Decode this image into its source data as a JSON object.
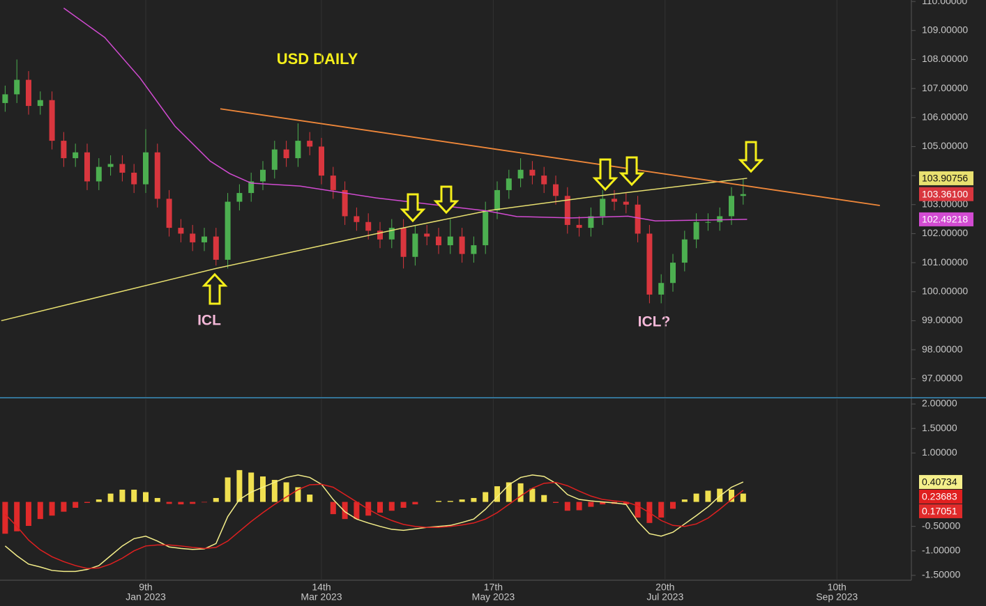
{
  "chart_data": [
    {
      "type": "candlestick",
      "title": "USD DAILY",
      "annotations": [
        "ICL",
        "ICL?"
      ],
      "xlim": [
        -37.32,
        196.07
      ],
      "ylim": [
        96.37,
        110.05
      ],
      "yticks": [
        {
          "value": 110,
          "label": "110.00000"
        },
        {
          "value": 109,
          "label": "109.00000"
        },
        {
          "value": 108,
          "label": "108.00000"
        },
        {
          "value": 107,
          "label": "107.00000"
        },
        {
          "value": 106,
          "label": "106.00000"
        },
        {
          "value": 105,
          "label": "105.00000"
        },
        {
          "value": 104,
          "label": "104.00000"
        },
        {
          "value": 103,
          "label": "103.00000"
        },
        {
          "value": 102,
          "label": "102.00000"
        },
        {
          "value": 101,
          "label": "101.00000"
        },
        {
          "value": 100,
          "label": "100.00000"
        },
        {
          "value": 99,
          "label": "99.00000"
        },
        {
          "value": 98,
          "label": "98.00000"
        },
        {
          "value": 97,
          "label": "97.00000"
        }
      ],
      "up_color": "#4caf50",
      "down_color": "#d9363e",
      "close_label": "103.36100",
      "x": [
        -36,
        -33,
        -30,
        -27,
        -24,
        -21,
        -18,
        -15,
        -12,
        -9,
        -6,
        -3,
        0,
        3,
        6,
        9,
        12,
        15,
        18,
        21,
        24,
        27,
        30,
        33,
        36,
        39,
        42,
        45,
        48,
        51,
        54,
        57,
        60,
        63,
        66,
        69,
        72,
        75,
        78,
        81,
        84,
        87,
        90,
        93,
        96,
        99,
        102,
        105,
        108,
        111,
        114,
        117,
        120,
        123,
        126,
        129,
        132,
        135,
        138,
        141,
        144,
        147,
        150,
        153
      ],
      "open": [
        106.5,
        106.8,
        107.3,
        106.4,
        106.6,
        105.2,
        104.6,
        104.8,
        103.8,
        104.3,
        104.4,
        104.1,
        103.7,
        104.8,
        103.2,
        102.2,
        102.0,
        101.7,
        101.9,
        101.1,
        103.1,
        103.4,
        103.8,
        104.2,
        104.9,
        104.6,
        105.2,
        105.0,
        104.0,
        103.5,
        102.6,
        102.4,
        102.1,
        101.8,
        102.2,
        101.2,
        102.0,
        101.9,
        101.6,
        101.9,
        101.3,
        101.6,
        102.8,
        103.5,
        103.9,
        104.2,
        104.0,
        103.7,
        103.3,
        102.3,
        102.2,
        102.6,
        103.2,
        103.1,
        103.0,
        102.0,
        99.9,
        100.3,
        101.0,
        101.8,
        102.4,
        102.4,
        102.6,
        103.3
      ],
      "high": [
        107.1,
        108.0,
        107.6,
        106.9,
        106.9,
        105.5,
        105.1,
        105.1,
        104.6,
        104.7,
        104.7,
        104.4,
        105.6,
        105.1,
        103.5,
        102.5,
        102.3,
        102.2,
        102.2,
        103.4,
        103.7,
        104.1,
        104.5,
        105.2,
        105.2,
        105.8,
        105.5,
        105.3,
        104.3,
        103.8,
        102.9,
        102.7,
        102.4,
        102.5,
        102.5,
        102.3,
        102.3,
        102.2,
        102.5,
        102.2,
        101.9,
        103.1,
        103.8,
        104.2,
        104.6,
        104.5,
        104.3,
        104.0,
        103.6,
        102.6,
        102.9,
        103.5,
        103.5,
        103.4,
        103.3,
        102.3,
        100.6,
        101.3,
        102.1,
        102.7,
        102.7,
        102.9,
        103.6,
        103.9
      ],
      "low": [
        106.2,
        106.5,
        106.1,
        106.1,
        104.9,
        104.3,
        104.3,
        103.5,
        103.5,
        104.0,
        103.8,
        103.4,
        103.4,
        102.9,
        101.9,
        101.7,
        101.4,
        101.4,
        100.9,
        100.8,
        102.8,
        103.1,
        103.5,
        103.9,
        104.3,
        104.3,
        104.7,
        103.7,
        103.2,
        102.3,
        102.1,
        101.8,
        101.5,
        101.5,
        100.8,
        100.9,
        101.6,
        101.3,
        101.3,
        101.0,
        101.0,
        101.3,
        102.5,
        103.2,
        103.6,
        103.7,
        103.4,
        103.0,
        102.0,
        101.9,
        101.9,
        102.3,
        102.8,
        102.7,
        101.7,
        99.6,
        99.6,
        100.0,
        100.7,
        101.5,
        102.1,
        102.1,
        102.3,
        103.0
      ],
      "close": [
        106.8,
        107.3,
        106.4,
        106.6,
        105.2,
        104.6,
        104.8,
        103.8,
        104.3,
        104.4,
        104.1,
        103.7,
        104.8,
        103.2,
        102.2,
        102.0,
        101.7,
        101.9,
        101.1,
        103.1,
        103.4,
        103.8,
        104.2,
        104.9,
        104.6,
        105.2,
        105.0,
        104.0,
        103.5,
        102.6,
        102.4,
        102.1,
        101.8,
        102.2,
        101.2,
        102.0,
        101.9,
        101.6,
        101.9,
        101.3,
        101.6,
        102.8,
        103.5,
        103.9,
        104.2,
        104.0,
        103.7,
        103.3,
        102.3,
        102.2,
        102.6,
        103.2,
        103.1,
        103.0,
        102.0,
        99.9,
        100.3,
        101.0,
        101.8,
        102.4,
        102.4,
        102.6,
        103.3,
        103.361
      ],
      "series": [
        {
          "color": "#e8e070",
          "last_label": "103.90756",
          "x": [
            -37,
            18,
            66,
            88,
            116,
            154
          ],
          "values": [
            99.0,
            100.8,
            102.2,
            102.8,
            103.3,
            103.90756
          ]
        },
        {
          "color": "#d24bd2",
          "last_label": "102.49218",
          "x": [
            -21,
            -10.5,
            -1.5,
            7.5,
            16.5,
            21.5,
            27,
            39.5,
            59,
            87.5,
            95,
            109,
            123.5,
            130.5,
            154
          ],
          "values": [
            109.77,
            108.76,
            107.37,
            105.7,
            104.5,
            104.07,
            103.74,
            103.64,
            103.23,
            102.78,
            102.59,
            102.54,
            102.6,
            102.44,
            102.49218
          ]
        }
      ],
      "trendline": {
        "color": "#f0883a",
        "x": [
          19.1,
          188
        ],
        "values": [
          106.3,
          102.97
        ]
      }
    },
    {
      "type": "macd",
      "xlim": [
        -37.32,
        196.07
      ],
      "ylim": [
        -1.6,
        2.1
      ],
      "yticks": [
        {
          "value": 2,
          "label": "2.00000"
        },
        {
          "value": 1.5,
          "label": "1.50000"
        },
        {
          "value": 1,
          "label": "1.00000"
        },
        {
          "value": -0.5,
          "label": "-0.50000"
        },
        {
          "value": -1,
          "label": "-1.00000"
        },
        {
          "value": -1.5,
          "label": "-1.50000"
        }
      ],
      "xticks": [
        {
          "value": 0,
          "label": "9th",
          "sublabel": "Jan 2023"
        },
        {
          "value": 45,
          "label": "14th",
          "sublabel": "Mar 2023"
        },
        {
          "value": 89,
          "label": "17th",
          "sublabel": "May 2023"
        },
        {
          "value": 133,
          "label": "20th",
          "sublabel": "Jul 2023"
        },
        {
          "value": 177,
          "label": "10th",
          "sublabel": "Sep 2023"
        }
      ],
      "grid": true,
      "x": [
        -36,
        -33,
        -30,
        -27,
        -24,
        -21,
        -18,
        -15,
        -12,
        -9,
        -6,
        -3,
        0,
        3,
        6,
        9,
        12,
        15,
        18,
        21,
        24,
        27,
        30,
        33,
        36,
        39,
        42,
        45,
        48,
        51,
        54,
        57,
        60,
        63,
        66,
        69,
        72,
        75,
        78,
        81,
        84,
        87,
        90,
        93,
        96,
        99,
        102,
        105,
        108,
        111,
        114,
        117,
        120,
        123,
        126,
        129,
        132,
        135,
        138,
        141,
        144,
        147,
        150,
        153
      ],
      "series": [
        {
          "color": "#f5ef8a",
          "last_label": "0.40734",
          "values": [
            -0.9,
            -1.1,
            -1.27,
            -1.33,
            -1.4,
            -1.42,
            -1.42,
            -1.38,
            -1.3,
            -1.1,
            -0.9,
            -0.75,
            -0.7,
            -0.8,
            -0.92,
            -0.95,
            -0.97,
            -0.96,
            -0.85,
            -0.3,
            0.05,
            0.2,
            0.3,
            0.4,
            0.5,
            0.55,
            0.5,
            0.36,
            0.05,
            -0.2,
            -0.35,
            -0.43,
            -0.5,
            -0.56,
            -0.58,
            -0.55,
            -0.52,
            -0.5,
            -0.48,
            -0.42,
            -0.35,
            -0.15,
            0.1,
            0.35,
            0.5,
            0.55,
            0.52,
            0.38,
            0.15,
            0.05,
            0.02,
            0.0,
            -0.02,
            -0.05,
            -0.4,
            -0.65,
            -0.7,
            -0.62,
            -0.45,
            -0.28,
            -0.1,
            0.12,
            0.3,
            0.40734
          ]
        },
        {
          "color": "#e02020",
          "last_label": "0.23683",
          "values": [
            -0.25,
            -0.5,
            -0.78,
            -0.98,
            -1.12,
            -1.22,
            -1.3,
            -1.36,
            -1.35,
            -1.27,
            -1.15,
            -1.0,
            -0.9,
            -0.88,
            -0.88,
            -0.9,
            -0.93,
            -0.95,
            -0.93,
            -0.8,
            -0.6,
            -0.4,
            -0.22,
            -0.05,
            0.1,
            0.25,
            0.35,
            0.36,
            0.3,
            0.15,
            0.0,
            -0.15,
            -0.28,
            -0.38,
            -0.46,
            -0.5,
            -0.52,
            -0.52,
            -0.5,
            -0.47,
            -0.43,
            -0.35,
            -0.22,
            -0.05,
            0.12,
            0.28,
            0.38,
            0.4,
            0.33,
            0.22,
            0.12,
            0.05,
            0.02,
            0.0,
            -0.08,
            -0.22,
            -0.38,
            -0.48,
            -0.5,
            -0.45,
            -0.33,
            -0.15,
            0.05,
            0.23683
          ]
        }
      ],
      "histogram": {
        "up_color": "#f0e050",
        "down_color": "#e02a2a",
        "last_label": "0.17051",
        "values": [
          -0.65,
          -0.6,
          -0.49,
          -0.35,
          -0.28,
          -0.2,
          -0.12,
          -0.02,
          0.05,
          0.17,
          0.25,
          0.25,
          0.2,
          0.08,
          -0.04,
          -0.05,
          -0.04,
          -0.01,
          0.08,
          0.5,
          0.65,
          0.6,
          0.52,
          0.45,
          0.4,
          0.3,
          0.15,
          0.0,
          -0.25,
          -0.35,
          -0.35,
          -0.28,
          -0.22,
          -0.18,
          -0.12,
          -0.05,
          0.0,
          0.02,
          0.02,
          0.05,
          0.08,
          0.2,
          0.32,
          0.4,
          0.38,
          0.27,
          0.14,
          -0.02,
          -0.18,
          -0.17,
          -0.1,
          -0.05,
          -0.04,
          -0.05,
          -0.32,
          -0.43,
          -0.32,
          -0.14,
          0.05,
          0.17,
          0.23,
          0.27,
          0.25,
          0.17051
        ]
      }
    }
  ]
}
